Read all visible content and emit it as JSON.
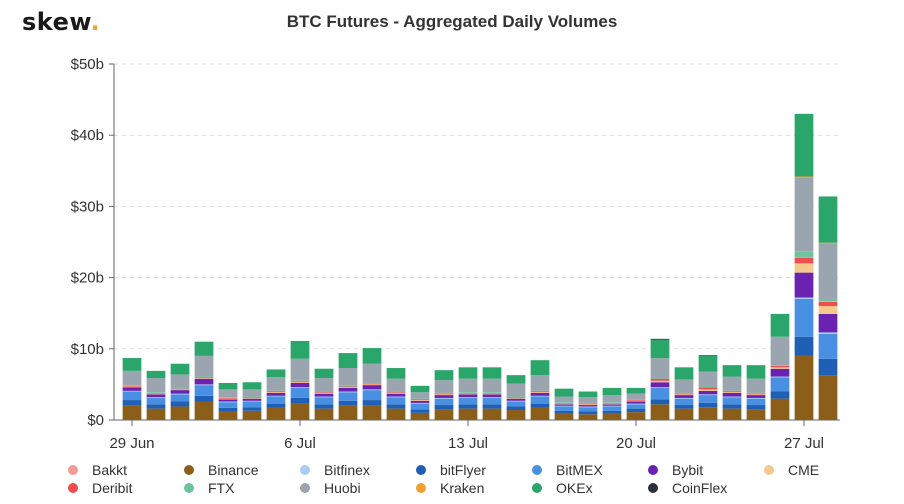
{
  "logo": {
    "text": "skew",
    "dot": "."
  },
  "chart_data": {
    "type": "bar",
    "stacked": true,
    "title": "BTC Futures - Aggregated Daily Volumes",
    "xlabel": "",
    "ylabel": "",
    "ylim": [
      0,
      50
    ],
    "yticks": [
      0,
      10,
      20,
      30,
      40,
      50
    ],
    "ytick_labels": [
      "$0",
      "$10b",
      "$20b",
      "$30b",
      "$40b",
      "$50b"
    ],
    "xtick_labels": [
      {
        "index": 0,
        "label": "29 Jun"
      },
      {
        "index": 7,
        "label": "6 Jul"
      },
      {
        "index": 14,
        "label": "13 Jul"
      },
      {
        "index": 21,
        "label": "20 Jul"
      },
      {
        "index": 28,
        "label": "27 Jul"
      }
    ],
    "grid": true,
    "legend_position": "bottom",
    "categories": [
      "29 Jun",
      "30 Jun",
      "1 Jul",
      "2 Jul",
      "3 Jul",
      "4 Jul",
      "5 Jul",
      "6 Jul",
      "7 Jul",
      "8 Jul",
      "9 Jul",
      "10 Jul",
      "11 Jul",
      "12 Jul",
      "13 Jul",
      "14 Jul",
      "15 Jul",
      "16 Jul",
      "17 Jul",
      "18 Jul",
      "19 Jul",
      "20 Jul",
      "21 Jul",
      "22 Jul",
      "23 Jul",
      "24 Jul",
      "25 Jul",
      "26 Jul",
      "27 Jul",
      "28 Jul"
    ],
    "series": [
      {
        "name": "Binance",
        "color": "#8b5e1a",
        "values": [
          2.0,
          1.6,
          1.9,
          2.6,
          1.2,
          1.3,
          1.7,
          2.3,
          1.6,
          2.0,
          2.1,
          1.6,
          1.0,
          1.5,
          1.6,
          1.6,
          1.4,
          1.7,
          0.9,
          0.8,
          0.9,
          1.1,
          2.2,
          1.6,
          1.8,
          1.6,
          1.5,
          3.0,
          9.0,
          6.3
        ]
      },
      {
        "name": "bitFlyer",
        "color": "#1f5fb5",
        "values": [
          0.8,
          0.6,
          0.7,
          0.8,
          0.5,
          0.5,
          0.6,
          0.8,
          0.6,
          0.7,
          0.7,
          0.6,
          0.5,
          0.6,
          0.6,
          0.6,
          0.5,
          0.6,
          0.4,
          0.4,
          0.4,
          0.5,
          0.7,
          0.5,
          0.6,
          0.6,
          0.6,
          1.0,
          2.7,
          2.3
        ]
      },
      {
        "name": "BitMEX",
        "color": "#4a90e2",
        "values": [
          1.2,
          0.9,
          1.0,
          1.5,
          0.8,
          0.8,
          1.0,
          1.4,
          1.0,
          1.2,
          1.4,
          1.0,
          0.8,
          0.9,
          0.9,
          0.9,
          0.7,
          1.0,
          0.6,
          0.6,
          0.6,
          0.6,
          1.6,
          0.9,
          1.1,
          1.0,
          0.9,
          2.0,
          5.3,
          3.5
        ]
      },
      {
        "name": "Bitfinex",
        "color": "#a9cdf5",
        "values": [
          0.1,
          0.1,
          0.1,
          0.1,
          0.1,
          0.1,
          0.1,
          0.1,
          0.1,
          0.1,
          0.1,
          0.1,
          0.1,
          0.1,
          0.1,
          0.1,
          0.1,
          0.1,
          0.1,
          0.1,
          0.1,
          0.1,
          0.1,
          0.1,
          0.1,
          0.1,
          0.1,
          0.1,
          0.2,
          0.2
        ]
      },
      {
        "name": "Bybit",
        "color": "#6a22b0",
        "values": [
          0.5,
          0.4,
          0.5,
          0.8,
          0.3,
          0.3,
          0.4,
          0.6,
          0.4,
          0.5,
          0.6,
          0.4,
          0.3,
          0.4,
          0.4,
          0.4,
          0.3,
          0.4,
          0.2,
          0.2,
          0.2,
          0.3,
          0.7,
          0.4,
          0.5,
          0.5,
          0.4,
          1.1,
          3.5,
          2.6
        ]
      },
      {
        "name": "CME",
        "color": "#f4c98b",
        "values": [
          0.1,
          0.1,
          0.1,
          0.1,
          0.1,
          0.1,
          0.1,
          0.1,
          0.1,
          0.1,
          0.1,
          0.1,
          0.1,
          0.1,
          0.1,
          0.1,
          0.1,
          0.1,
          0.1,
          0.1,
          0.1,
          0.1,
          0.2,
          0.1,
          0.2,
          0.1,
          0.1,
          0.2,
          1.3,
          1.1
        ]
      },
      {
        "name": "Deribit",
        "color": "#f04e4e",
        "values": [
          0.1,
          0.1,
          0.1,
          0.1,
          0.1,
          0.1,
          0.1,
          0.1,
          0.1,
          0.1,
          0.1,
          0.1,
          0.1,
          0.1,
          0.1,
          0.1,
          0.1,
          0.1,
          0.1,
          0.1,
          0.1,
          0.1,
          0.3,
          0.1,
          0.3,
          0.1,
          0.1,
          0.2,
          0.8,
          0.6
        ]
      },
      {
        "name": "Bakkt",
        "color": "#f39a94",
        "values": [
          0,
          0,
          0,
          0,
          0,
          0,
          0,
          0,
          0,
          0,
          0,
          0,
          0,
          0,
          0,
          0,
          0,
          0,
          0,
          0,
          0,
          0,
          0,
          0,
          0,
          0,
          0,
          0,
          0.1,
          0.1
        ]
      },
      {
        "name": "FTX",
        "color": "#6cc3a0",
        "values": [
          0.1,
          0.1,
          0.1,
          0.1,
          0.1,
          0.1,
          0.1,
          0.1,
          0.1,
          0.1,
          0.1,
          0.1,
          0.1,
          0.1,
          0.1,
          0.1,
          0.1,
          0.1,
          0.1,
          0.1,
          0.1,
          0.1,
          0.1,
          0.1,
          0.1,
          0.1,
          0.1,
          0.1,
          0.8,
          0.3
        ]
      },
      {
        "name": "Huobi",
        "color": "#9aa5b0",
        "values": [
          2.0,
          2.0,
          1.9,
          2.9,
          1.1,
          1.0,
          1.9,
          3.1,
          1.9,
          2.5,
          2.7,
          1.8,
          0.9,
          1.8,
          1.9,
          1.9,
          1.8,
          2.2,
          0.8,
          0.8,
          1.0,
          0.8,
          2.8,
          1.9,
          2.1,
          2.0,
          2.0,
          4.0,
          10.3,
          7.8
        ]
      },
      {
        "name": "Kraken",
        "color": "#f0a030",
        "values": [
          0,
          0,
          0,
          0,
          0,
          0,
          0,
          0,
          0,
          0,
          0,
          0,
          0,
          0,
          0,
          0,
          0,
          0,
          0,
          0,
          0,
          0,
          0,
          0,
          0,
          0,
          0,
          0,
          0.2,
          0.1
        ]
      },
      {
        "name": "OKEx",
        "color": "#2ba66a",
        "values": [
          1.8,
          1.0,
          1.5,
          2.0,
          0.9,
          1.0,
          1.1,
          2.5,
          1.3,
          2.1,
          2.2,
          1.5,
          0.9,
          1.4,
          1.6,
          1.6,
          1.2,
          2.1,
          1.1,
          0.8,
          1.0,
          0.8,
          2.6,
          1.7,
          2.2,
          1.6,
          1.9,
          3.2,
          8.8,
          6.5
        ]
      },
      {
        "name": "CoinFlex",
        "color": "#2a3138",
        "values": [
          0,
          0,
          0,
          0,
          0,
          0,
          0,
          0,
          0,
          0,
          0,
          0,
          0,
          0,
          0,
          0,
          0,
          0,
          0,
          0,
          0,
          0,
          0.1,
          0,
          0.1,
          0,
          0,
          0,
          0,
          0
        ]
      }
    ],
    "legend_entries": [
      {
        "name": "Bakkt",
        "color": "#f39a94"
      },
      {
        "name": "Binance",
        "color": "#8b5e1a"
      },
      {
        "name": "Bitfinex",
        "color": "#a9cdf5"
      },
      {
        "name": "bitFlyer",
        "color": "#1f5fb5"
      },
      {
        "name": "BitMEX",
        "color": "#4a90e2"
      },
      {
        "name": "Bybit",
        "color": "#6a22b0"
      },
      {
        "name": "CME",
        "color": "#f4c98b"
      },
      {
        "name": "Deribit",
        "color": "#f04e4e"
      },
      {
        "name": "FTX",
        "color": "#6cc3a0"
      },
      {
        "name": "Huobi",
        "color": "#9aa5b0"
      },
      {
        "name": "Kraken",
        "color": "#f0a030"
      },
      {
        "name": "OKEx",
        "color": "#2ba66a"
      },
      {
        "name": "CoinFlex",
        "color": "#2a3138"
      }
    ]
  }
}
